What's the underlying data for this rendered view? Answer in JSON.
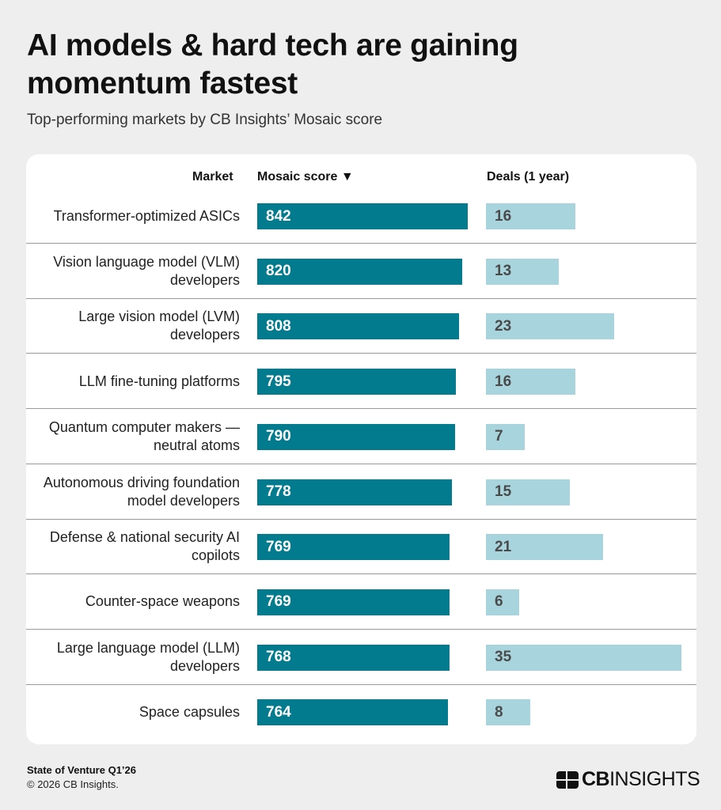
{
  "header": {
    "title": "AI models & hard tech are gaining momentum fastest",
    "subtitle": "Top-performing markets by CB Insights’ Mosaic score"
  },
  "chart_data": {
    "type": "bar",
    "columns": {
      "market": "Market",
      "mosaic": "Mosaic score ▼",
      "deals": "Deals (1 year)"
    },
    "categories": [
      "Transformer-optimized ASICs",
      "Vision language model (VLM) developers",
      "Large vision model (LVM) developers",
      "LLM fine-tuning platforms",
      "Quantum computer makers — neutral atoms",
      "Autonomous driving foundation model developers",
      "Defense & national security AI copilots",
      "Counter-space weapons",
      "Large language model (LLM) developers",
      "Space capsules"
    ],
    "series": [
      {
        "name": "Mosaic score",
        "color": "#027b8e",
        "values": [
          842,
          820,
          808,
          795,
          790,
          778,
          769,
          769,
          768,
          764
        ]
      },
      {
        "name": "Deals (1 year)",
        "color": "#a8d5dd",
        "values": [
          16,
          13,
          23,
          16,
          7,
          15,
          21,
          6,
          35,
          8
        ]
      }
    ],
    "sort": "Mosaic score descending"
  },
  "footer": {
    "source": "State of Venture Q1’26",
    "copyright": "© 2026 CB Insights.",
    "logo": "CBINSIGHTS"
  }
}
